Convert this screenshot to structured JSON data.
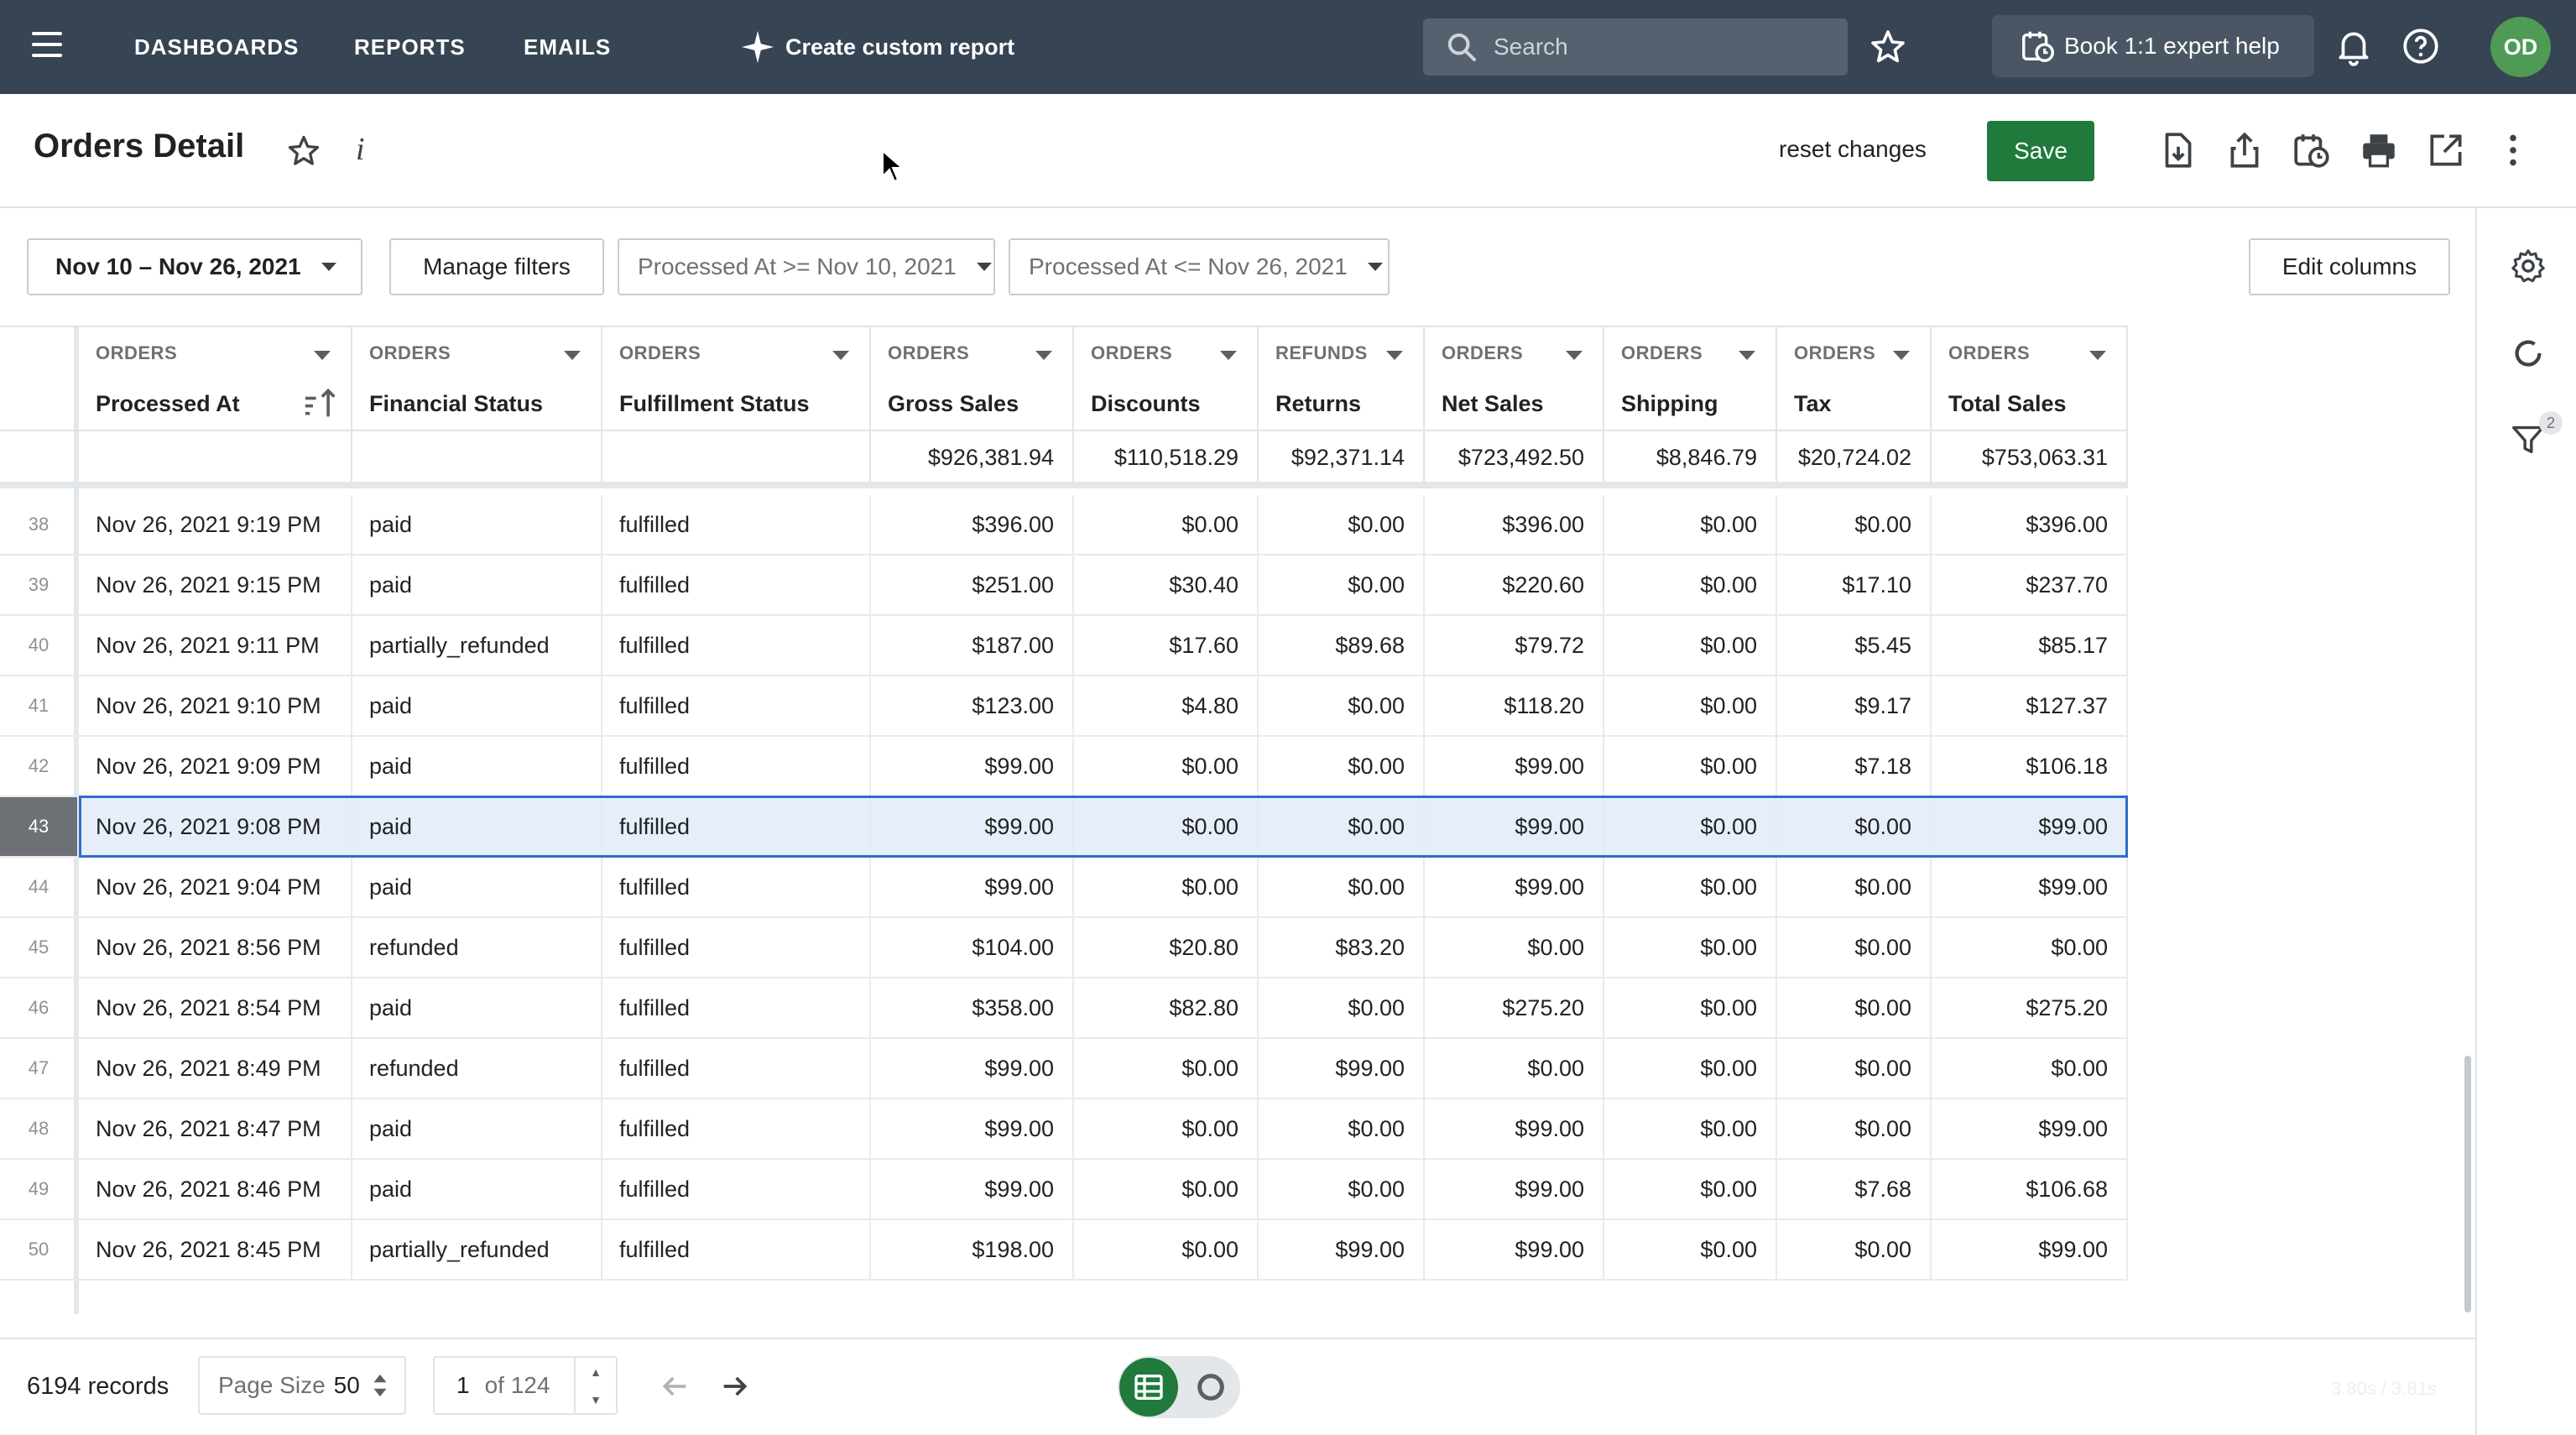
{
  "topbar": {
    "nav": [
      "DASHBOARDS",
      "REPORTS",
      "EMAILS"
    ],
    "custom_report": "Create custom report",
    "search_placeholder": "Search",
    "expert_help": "Book 1:1 expert help",
    "avatar": "OD"
  },
  "page": {
    "title": "Orders Detail",
    "reset_label": "reset changes",
    "save_label": "Save"
  },
  "filters": {
    "date_range": "Nov 10 – Nov 26, 2021",
    "manage": "Manage filters",
    "chips": [
      "Processed At >= Nov 10, 2021",
      "Processed At <= Nov 26, 2021"
    ],
    "edit_columns": "Edit columns"
  },
  "sidebar": {
    "filter_count": "2"
  },
  "table": {
    "columns": [
      {
        "group": "ORDERS",
        "name": "Processed At"
      },
      {
        "group": "ORDERS",
        "name": "Financial Status"
      },
      {
        "group": "ORDERS",
        "name": "Fulfillment Status"
      },
      {
        "group": "ORDERS",
        "name": "Gross Sales"
      },
      {
        "group": "ORDERS",
        "name": "Discounts"
      },
      {
        "group": "REFUNDS",
        "name": "Returns"
      },
      {
        "group": "ORDERS",
        "name": "Net Sales"
      },
      {
        "group": "ORDERS",
        "name": "Shipping"
      },
      {
        "group": "ORDERS",
        "name": "Tax"
      },
      {
        "group": "ORDERS",
        "name": "Total Sales"
      }
    ],
    "totals": [
      "",
      "",
      "",
      "$926,381.94",
      "$110,518.29",
      "$92,371.14",
      "$723,492.50",
      "$8,846.79",
      "$20,724.02",
      "$753,063.31"
    ],
    "selected_row": "43",
    "rows": [
      [
        "38",
        "Nov 26, 2021 9:19 PM",
        "paid",
        "fulfilled",
        "$396.00",
        "$0.00",
        "$0.00",
        "$396.00",
        "$0.00",
        "$0.00",
        "$396.00"
      ],
      [
        "39",
        "Nov 26, 2021 9:15 PM",
        "paid",
        "fulfilled",
        "$251.00",
        "$30.40",
        "$0.00",
        "$220.60",
        "$0.00",
        "$17.10",
        "$237.70"
      ],
      [
        "40",
        "Nov 26, 2021 9:11 PM",
        "partially_refunded",
        "fulfilled",
        "$187.00",
        "$17.60",
        "$89.68",
        "$79.72",
        "$0.00",
        "$5.45",
        "$85.17"
      ],
      [
        "41",
        "Nov 26, 2021 9:10 PM",
        "paid",
        "fulfilled",
        "$123.00",
        "$4.80",
        "$0.00",
        "$118.20",
        "$0.00",
        "$9.17",
        "$127.37"
      ],
      [
        "42",
        "Nov 26, 2021 9:09 PM",
        "paid",
        "fulfilled",
        "$99.00",
        "$0.00",
        "$0.00",
        "$99.00",
        "$0.00",
        "$7.18",
        "$106.18"
      ],
      [
        "43",
        "Nov 26, 2021 9:08 PM",
        "paid",
        "fulfilled",
        "$99.00",
        "$0.00",
        "$0.00",
        "$99.00",
        "$0.00",
        "$0.00",
        "$99.00"
      ],
      [
        "44",
        "Nov 26, 2021 9:04 PM",
        "paid",
        "fulfilled",
        "$99.00",
        "$0.00",
        "$0.00",
        "$99.00",
        "$0.00",
        "$0.00",
        "$99.00"
      ],
      [
        "45",
        "Nov 26, 2021 8:56 PM",
        "refunded",
        "fulfilled",
        "$104.00",
        "$20.80",
        "$83.20",
        "$0.00",
        "$0.00",
        "$0.00",
        "$0.00"
      ],
      [
        "46",
        "Nov 26, 2021 8:54 PM",
        "paid",
        "fulfilled",
        "$358.00",
        "$82.80",
        "$0.00",
        "$275.20",
        "$0.00",
        "$0.00",
        "$275.20"
      ],
      [
        "47",
        "Nov 26, 2021 8:49 PM",
        "refunded",
        "fulfilled",
        "$99.00",
        "$0.00",
        "$99.00",
        "$0.00",
        "$0.00",
        "$0.00",
        "$0.00"
      ],
      [
        "48",
        "Nov 26, 2021 8:47 PM",
        "paid",
        "fulfilled",
        "$99.00",
        "$0.00",
        "$0.00",
        "$99.00",
        "$0.00",
        "$0.00",
        "$99.00"
      ],
      [
        "49",
        "Nov 26, 2021 8:46 PM",
        "paid",
        "fulfilled",
        "$99.00",
        "$0.00",
        "$0.00",
        "$99.00",
        "$0.00",
        "$7.68",
        "$106.68"
      ],
      [
        "50",
        "Nov 26, 2021 8:45 PM",
        "partially_refunded",
        "fulfilled",
        "$198.00",
        "$0.00",
        "$99.00",
        "$99.00",
        "$0.00",
        "$0.00",
        "$99.00"
      ]
    ]
  },
  "footer": {
    "records": "6194 records",
    "page_size_label": "Page Size",
    "page_size_value": "50",
    "page_current": "1",
    "page_of": "of 124",
    "timing": "3.80s / 3.81s"
  },
  "colors": {
    "topbar": "#364453",
    "accent": "#1f7a3c",
    "selection": "#2c6ecb",
    "avatar": "#4f9a54"
  },
  "icons": [
    "menu-icon",
    "sparkle-icon",
    "search-icon",
    "star-icon",
    "calendar-clock-icon",
    "bell-icon",
    "help-icon",
    "info-icon",
    "download-icon",
    "share-icon",
    "schedule-icon",
    "print-icon",
    "open-external-icon",
    "more-vertical-icon",
    "gear-icon",
    "refresh-icon",
    "filter-icon",
    "sort-icon",
    "grid-view-icon",
    "arrow-left-icon",
    "arrow-right-icon"
  ]
}
